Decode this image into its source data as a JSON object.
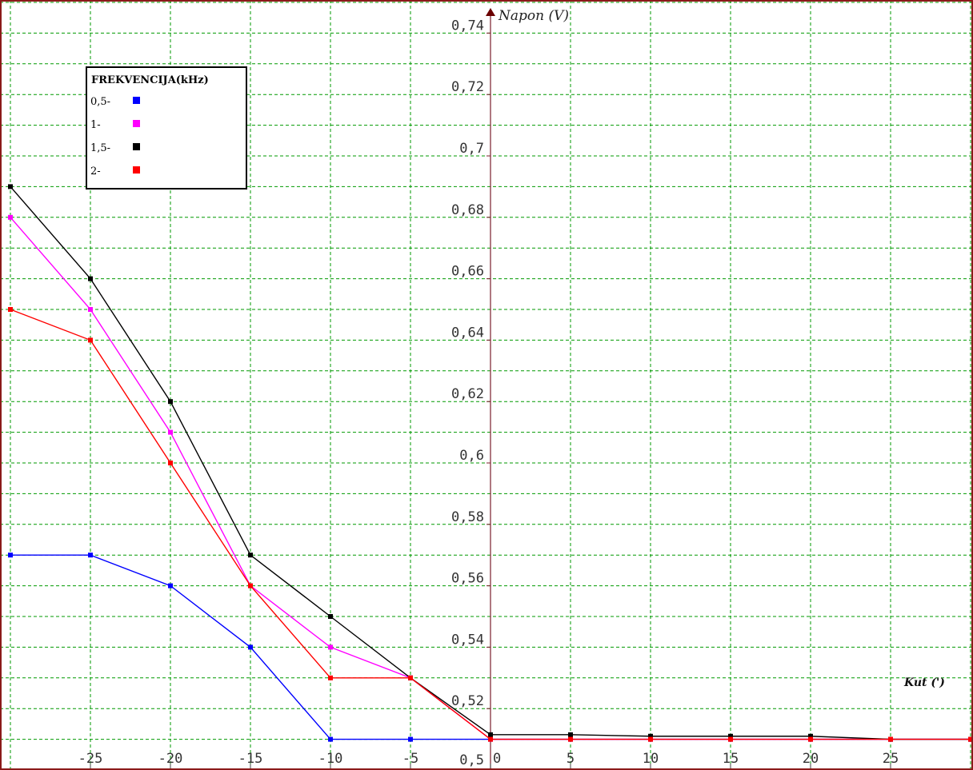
{
  "chart_data": {
    "type": "line",
    "xlabel": "Kut (')",
    "ylabel": "Napon (V)",
    "xlim": [
      -30,
      30
    ],
    "ylim": [
      0.5,
      0.745
    ],
    "x_ticks": [
      {
        "value": -25,
        "label": "-25"
      },
      {
        "value": -20,
        "label": "-20"
      },
      {
        "value": -15,
        "label": "-15"
      },
      {
        "value": -10,
        "label": "-10"
      },
      {
        "value": -5,
        "label": "-5"
      },
      {
        "value": 0,
        "label": "0"
      },
      {
        "value": 5,
        "label": "5"
      },
      {
        "value": 10,
        "label": "10"
      },
      {
        "value": 15,
        "label": "15"
      },
      {
        "value": 20,
        "label": "20"
      },
      {
        "value": 25,
        "label": "25"
      }
    ],
    "y_ticks": [
      {
        "value": 0.5,
        "label": "0,5"
      },
      {
        "value": 0.52,
        "label": "0,52"
      },
      {
        "value": 0.54,
        "label": "0,54"
      },
      {
        "value": 0.56,
        "label": "0,56"
      },
      {
        "value": 0.58,
        "label": "0,58"
      },
      {
        "value": 0.6,
        "label": "0,6"
      },
      {
        "value": 0.62,
        "label": "0,62"
      },
      {
        "value": 0.64,
        "label": "0,64"
      },
      {
        "value": 0.66,
        "label": "0,66"
      },
      {
        "value": 0.68,
        "label": "0,68"
      },
      {
        "value": 0.7,
        "label": "0,7"
      },
      {
        "value": 0.72,
        "label": "0,72"
      },
      {
        "value": 0.74,
        "label": "0,74"
      }
    ],
    "grid": true,
    "legend": {
      "title": "FREKVENCIJA(kHz)",
      "position": "top-left",
      "entries": [
        {
          "label": "0,5-",
          "color": "#0000ff"
        },
        {
          "label": "1-",
          "color": "#ff00ff"
        },
        {
          "label": "1,5-",
          "color": "#000000"
        },
        {
          "label": "2-",
          "color": "#ff0000"
        }
      ]
    },
    "series": [
      {
        "name": "0,5",
        "color": "#0000ff",
        "x": [
          -30,
          -25,
          -20,
          -15,
          -10,
          -5,
          0,
          5,
          10,
          15,
          20,
          25,
          30
        ],
        "y": [
          0.57,
          0.57,
          0.56,
          0.54,
          0.51,
          0.51,
          0.51,
          0.51,
          0.51,
          0.51,
          0.51,
          0.51,
          0.51
        ]
      },
      {
        "name": "1",
        "color": "#ff00ff",
        "x": [
          -30,
          -25,
          -20,
          -15,
          -10,
          -5,
          0,
          5,
          10,
          15,
          20,
          25,
          30
        ],
        "y": [
          0.68,
          0.65,
          0.61,
          0.56,
          0.54,
          0.53,
          0.51,
          0.51,
          0.51,
          0.51,
          0.51,
          0.51,
          0.51
        ]
      },
      {
        "name": "1,5",
        "color": "#000000",
        "x": [
          -30,
          -25,
          -20,
          -15,
          -10,
          -5,
          0,
          5,
          10,
          15,
          20,
          25,
          30
        ],
        "y": [
          0.69,
          0.66,
          0.62,
          0.57,
          0.55,
          0.53,
          0.5115,
          0.5115,
          0.511,
          0.511,
          0.511,
          0.51,
          0.51
        ]
      },
      {
        "name": "2",
        "color": "#ff0000",
        "x": [
          -30,
          -25,
          -20,
          -15,
          -10,
          -5,
          0,
          5,
          10,
          15,
          20,
          25,
          30
        ],
        "y": [
          0.65,
          0.64,
          0.6,
          0.56,
          0.53,
          0.53,
          0.51,
          0.51,
          0.51,
          0.51,
          0.51,
          0.51,
          0.51
        ]
      }
    ]
  },
  "colors": {
    "frame": "#8b1a1a",
    "grid": "#009900",
    "axis": "#7a1f2b",
    "arrow": "#6b0000"
  }
}
